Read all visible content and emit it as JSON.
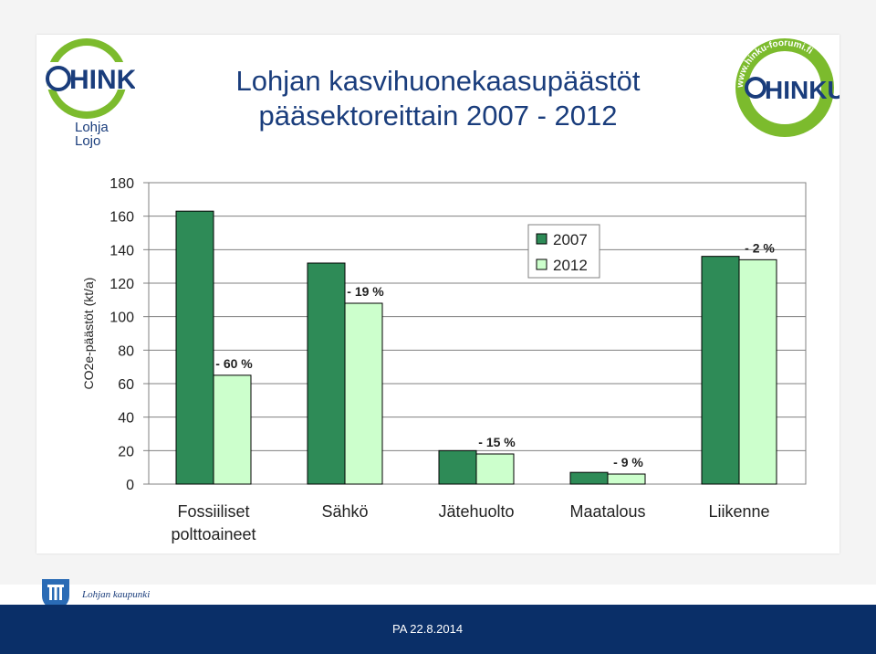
{
  "title": {
    "line1": "Lohjan kasvihuonekaasupäästöt",
    "line2": "pääsektoreittain 2007 - 2012"
  },
  "logos": {
    "left_text": "HINKU",
    "left_city_1": "Lohja",
    "left_city_2": "Lojo",
    "right_text": "HINKU",
    "right_ring": "www.hinku-foorumi.fi"
  },
  "footer": {
    "city": "Lohjan kaupunki",
    "date": "PA 22.8.2014"
  },
  "colors": {
    "series2007": "#2e8b57",
    "series2012": "#ccffcc",
    "title": "#1a3d7c",
    "footer": "#0a2f68"
  },
  "chart_data": {
    "type": "bar",
    "categories": [
      "Fossiiliset\npolttoaineet",
      "Sähkö",
      "Jätehuolto",
      "Maatalous",
      "Liikenne"
    ],
    "series": [
      {
        "name": "2007",
        "values": [
          163,
          132,
          20,
          7,
          136
        ]
      },
      {
        "name": "2012",
        "values": [
          65,
          108,
          18,
          6,
          134
        ]
      }
    ],
    "annotations": [
      "- 60 %",
      "- 19 %",
      "- 15 %",
      "- 9 %",
      "- 2 %"
    ],
    "ylabel": "CO2e-päästöt (kt/a)",
    "yticks": [
      0,
      20,
      40,
      60,
      80,
      100,
      120,
      140,
      160,
      180
    ],
    "ylim": [
      0,
      180
    ],
    "grid": true,
    "legend": "top-center"
  }
}
